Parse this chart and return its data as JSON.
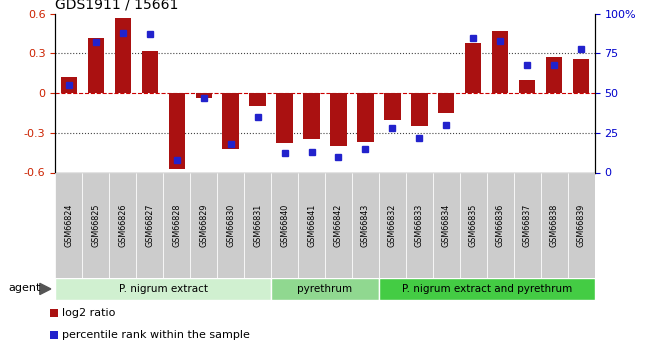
{
  "title": "GDS1911 / 15661",
  "samples": [
    "GSM66824",
    "GSM66825",
    "GSM66826",
    "GSM66827",
    "GSM66828",
    "GSM66829",
    "GSM66830",
    "GSM66831",
    "GSM66840",
    "GSM66841",
    "GSM66842",
    "GSM66843",
    "GSM66832",
    "GSM66833",
    "GSM66834",
    "GSM66835",
    "GSM66836",
    "GSM66837",
    "GSM66838",
    "GSM66839"
  ],
  "log2_ratio": [
    0.12,
    0.42,
    0.57,
    0.32,
    -0.57,
    -0.04,
    -0.42,
    -0.1,
    -0.38,
    -0.35,
    -0.4,
    -0.37,
    -0.2,
    -0.25,
    -0.15,
    0.38,
    0.47,
    0.1,
    0.27,
    0.26
  ],
  "percentile": [
    55,
    82,
    88,
    87,
    8,
    47,
    18,
    35,
    12,
    13,
    10,
    15,
    28,
    22,
    30,
    85,
    83,
    68,
    68,
    78
  ],
  "groups": [
    {
      "label": "P. nigrum extract",
      "start": 0,
      "end": 8,
      "color": "#d0f0d0"
    },
    {
      "label": "pyrethrum",
      "start": 8,
      "end": 12,
      "color": "#90d890"
    },
    {
      "label": "P. nigrum extract and pyrethrum",
      "start": 12,
      "end": 20,
      "color": "#44cc44"
    }
  ],
  "bar_color": "#aa1111",
  "dot_color": "#2222cc",
  "ylim": [
    -0.6,
    0.6
  ],
  "yticks_left": [
    -0.6,
    -0.3,
    0.0,
    0.3,
    0.6
  ],
  "ytick_labels_left": [
    "-0.6",
    "-0.3",
    "0",
    "0.3",
    "0.6"
  ],
  "right_yticks": [
    0,
    25,
    50,
    75,
    100
  ],
  "right_yticklabels": [
    "0",
    "25",
    "50",
    "75",
    "100%"
  ],
  "hline_color": "#cc0000",
  "dot_hline_color": "#888888",
  "xtick_bg": "#cccccc",
  "left_color": "#cc2200",
  "right_color": "#0000cc"
}
